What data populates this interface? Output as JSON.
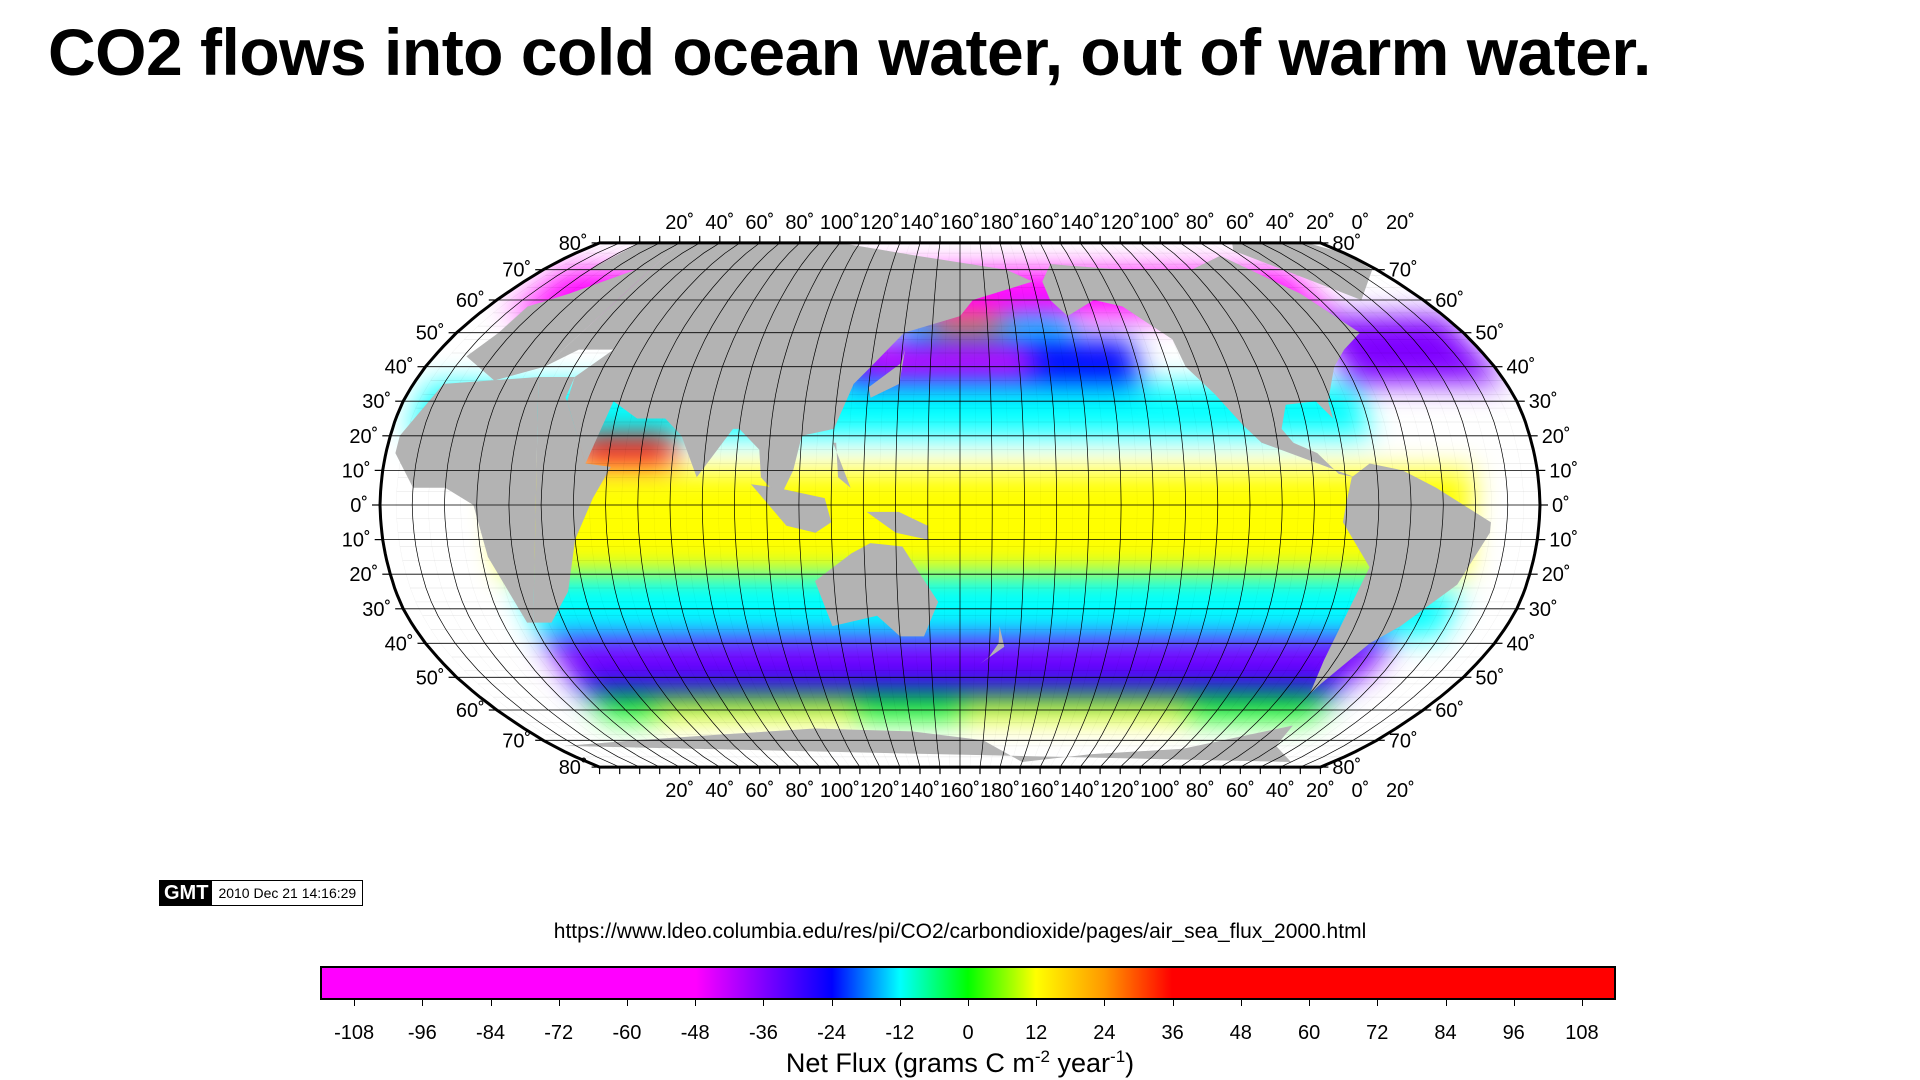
{
  "title": "CO2 flows into cold ocean water, out of warm water.",
  "map": {
    "projection": "Robinson",
    "center_longitude": 160,
    "top_longitude_labels": [
      "20˚",
      "40˚",
      "60˚",
      "80˚",
      "100˚",
      "120˚",
      "140˚",
      "160˚",
      "180˚",
      "160˚",
      "140˚",
      "120˚",
      "100˚",
      "80˚",
      "60˚",
      "40˚",
      "20˚",
      "0˚",
      "20˚"
    ],
    "bottom_longitude_labels": [
      "20˚",
      "40˚",
      "60˚",
      "80˚",
      "100˚",
      "120˚",
      "140˚",
      "160˚",
      "180˚",
      "160˚",
      "140˚",
      "120˚",
      "100˚",
      "80˚",
      "60˚",
      "40˚",
      "20˚",
      "0˚",
      "20˚"
    ],
    "left_latitude_labels": [
      "80˚",
      "70˚",
      "60˚",
      "50˚",
      "40˚",
      "30˚",
      "20˚",
      "10˚",
      "0˚",
      "10˚",
      "20˚",
      "30˚",
      "40˚",
      "50˚",
      "60˚",
      "70˚",
      "80˚"
    ],
    "right_latitude_labels": [
      "80˚",
      "70˚",
      "60˚",
      "50˚",
      "40˚",
      "30˚",
      "20˚",
      "10˚",
      "0˚",
      "10˚",
      "20˚",
      "30˚",
      "40˚",
      "50˚",
      "60˚",
      "70˚",
      "80˚"
    ],
    "land_color": "#b3b3b3",
    "ocean_background": "#ffffff"
  },
  "gmt_stamp": {
    "logo": "GMT",
    "timestamp": "2010 Dec 21 14:16:29"
  },
  "source_url": "https://www.ldeo.columbia.edu/res/pi/CO2/carbondioxide/pages/air_sea_flux_2000.html",
  "colorbar": {
    "tick_labels": [
      "-108",
      "-96",
      "-84",
      "-72",
      "-60",
      "-48",
      "-36",
      "-24",
      "-12",
      "0",
      "12",
      "24",
      "36",
      "48",
      "60",
      "72",
      "84",
      "96",
      "108"
    ],
    "range": [
      -114,
      114
    ],
    "colors": {
      "strong_uptake": "#ff00ff",
      "uptake": "#7f00ff",
      "moderate_uptake": "#0000ff",
      "weak_uptake": "#00ffff",
      "neutral": "#00ff00",
      "weak_outgassing": "#ffff00",
      "outgassing": "#ff9900",
      "strong_outgassing": "#ff0000"
    },
    "label_parts": [
      "Net Flux (grams C m",
      "-2",
      " year",
      "-1",
      ")"
    ]
  }
}
